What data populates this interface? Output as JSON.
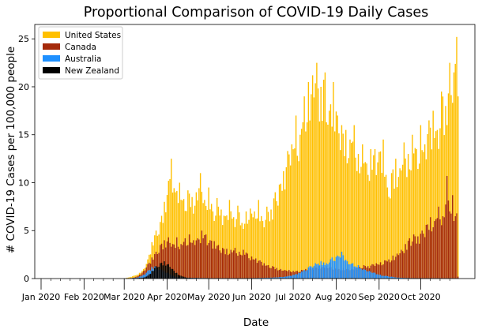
{
  "chart_data": {
    "type": "bar",
    "title": "Proportional Comparison of COVID-19 Daily Cases",
    "xlabel": "Date",
    "ylabel": "# COVID-19 Cases per 100,000 people",
    "ylim": [
      0,
      26.5
    ],
    "yticks": [
      0,
      5,
      10,
      15,
      20,
      25
    ],
    "x_range": [
      "2020-01-01",
      "2020-10-31"
    ],
    "x_ticks": [
      {
        "label": "Jan 2020",
        "date": "2020-01-01"
      },
      {
        "label": "Feb 2020",
        "date": "2020-02-01"
      },
      {
        "label": "Mar 2020",
        "date": "2020-03-01"
      },
      {
        "label": "Apr 2020",
        "date": "2020-04-01"
      },
      {
        "label": "May 2020",
        "date": "2020-05-01"
      },
      {
        "label": "Jun 2020",
        "date": "2020-06-01"
      },
      {
        "label": "Jul 2020",
        "date": "2020-07-01"
      },
      {
        "label": "Aug 2020",
        "date": "2020-08-01"
      },
      {
        "label": "Sep 2020",
        "date": "2020-09-01"
      },
      {
        "label": "Oct 2020",
        "date": "2020-10-01"
      }
    ],
    "legend_position": "top-left",
    "series": [
      {
        "name": "United States",
        "color": "#FFC000",
        "points": [
          [
            "2020-03-01",
            0.0
          ],
          [
            "2020-03-08",
            0.3
          ],
          [
            "2020-03-12",
            0.6
          ],
          [
            "2020-03-15",
            1.0
          ],
          [
            "2020-03-18",
            2.0
          ],
          [
            "2020-03-21",
            3.8
          ],
          [
            "2020-03-24",
            5.0
          ],
          [
            "2020-03-27",
            5.9
          ],
          [
            "2020-03-30",
            8.0
          ],
          [
            "2020-04-02",
            10.2
          ],
          [
            "2020-04-04",
            12.5
          ],
          [
            "2020-04-07",
            9.0
          ],
          [
            "2020-04-10",
            10.0
          ],
          [
            "2020-04-13",
            8.3
          ],
          [
            "2020-04-16",
            9.2
          ],
          [
            "2020-04-19",
            8.5
          ],
          [
            "2020-04-22",
            9.0
          ],
          [
            "2020-04-25",
            11.0
          ],
          [
            "2020-04-28",
            8.2
          ],
          [
            "2020-05-01",
            9.5
          ],
          [
            "2020-05-04",
            7.0
          ],
          [
            "2020-05-07",
            8.4
          ],
          [
            "2020-05-10",
            7.2
          ],
          [
            "2020-05-13",
            6.5
          ],
          [
            "2020-05-16",
            8.2
          ],
          [
            "2020-05-19",
            6.4
          ],
          [
            "2020-05-22",
            7.6
          ],
          [
            "2020-05-25",
            5.8
          ],
          [
            "2020-05-28",
            7.0
          ],
          [
            "2020-05-31",
            7.3
          ],
          [
            "2020-06-03",
            7.0
          ],
          [
            "2020-06-06",
            8.2
          ],
          [
            "2020-06-09",
            6.0
          ],
          [
            "2020-06-12",
            7.5
          ],
          [
            "2020-06-15",
            7.2
          ],
          [
            "2020-06-18",
            9.0
          ],
          [
            "2020-06-21",
            9.8
          ],
          [
            "2020-06-24",
            11.2
          ],
          [
            "2020-06-27",
            13.3
          ],
          [
            "2020-06-30",
            14.0
          ],
          [
            "2020-07-03",
            17.0
          ],
          [
            "2020-07-06",
            15.0
          ],
          [
            "2020-07-09",
            19.0
          ],
          [
            "2020-07-12",
            20.5
          ],
          [
            "2020-07-15",
            21.2
          ],
          [
            "2020-07-18",
            22.5
          ],
          [
            "2020-07-21",
            20.0
          ],
          [
            "2020-07-24",
            21.5
          ],
          [
            "2020-07-27",
            17.5
          ],
          [
            "2020-07-30",
            20.5
          ],
          [
            "2020-08-02",
            17.0
          ],
          [
            "2020-08-05",
            16.0
          ],
          [
            "2020-08-08",
            15.5
          ],
          [
            "2020-08-11",
            14.5
          ],
          [
            "2020-08-14",
            16.0
          ],
          [
            "2020-08-17",
            13.0
          ],
          [
            "2020-08-20",
            14.0
          ],
          [
            "2020-08-23",
            12.0
          ],
          [
            "2020-08-26",
            13.5
          ],
          [
            "2020-08-29",
            13.5
          ],
          [
            "2020-09-01",
            13.2
          ],
          [
            "2020-09-04",
            14.5
          ],
          [
            "2020-09-07",
            9.5
          ],
          [
            "2020-09-10",
            11.0
          ],
          [
            "2020-09-13",
            12.5
          ],
          [
            "2020-09-16",
            11.5
          ],
          [
            "2020-09-19",
            14.2
          ],
          [
            "2020-09-22",
            13.0
          ],
          [
            "2020-09-25",
            15.0
          ],
          [
            "2020-09-28",
            13.5
          ],
          [
            "2020-10-01",
            16.0
          ],
          [
            "2020-10-04",
            14.0
          ],
          [
            "2020-10-07",
            16.5
          ],
          [
            "2020-10-10",
            17.5
          ],
          [
            "2020-10-13",
            15.5
          ],
          [
            "2020-10-16",
            19.5
          ],
          [
            "2020-10-19",
            18.0
          ],
          [
            "2020-10-22",
            22.5
          ],
          [
            "2020-10-25",
            21.5
          ],
          [
            "2020-10-27",
            25.2
          ],
          [
            "2020-10-28",
            19.0
          ],
          [
            "2020-10-29",
            0.0
          ]
        ]
      },
      {
        "name": "Canada",
        "color": "#A52A0A",
        "points": [
          [
            "2020-03-01",
            0.0
          ],
          [
            "2020-03-08",
            0.1
          ],
          [
            "2020-03-12",
            0.4
          ],
          [
            "2020-03-15",
            0.8
          ],
          [
            "2020-03-18",
            1.5
          ],
          [
            "2020-03-21",
            2.2
          ],
          [
            "2020-03-24",
            2.8
          ],
          [
            "2020-03-27",
            3.5
          ],
          [
            "2020-03-30",
            4.0
          ],
          [
            "2020-04-02",
            4.3
          ],
          [
            "2020-04-05",
            3.6
          ],
          [
            "2020-04-08",
            4.3
          ],
          [
            "2020-04-11",
            3.6
          ],
          [
            "2020-04-14",
            4.2
          ],
          [
            "2020-04-17",
            4.6
          ],
          [
            "2020-04-20",
            4.0
          ],
          [
            "2020-04-23",
            4.2
          ],
          [
            "2020-04-26",
            5.0
          ],
          [
            "2020-04-29",
            4.6
          ],
          [
            "2020-05-02",
            4.0
          ],
          [
            "2020-05-05",
            3.9
          ],
          [
            "2020-05-08",
            3.5
          ],
          [
            "2020-05-11",
            3.2
          ],
          [
            "2020-05-14",
            3.1
          ],
          [
            "2020-05-17",
            3.0
          ],
          [
            "2020-05-20",
            3.2
          ],
          [
            "2020-05-23",
            2.8
          ],
          [
            "2020-05-26",
            3.0
          ],
          [
            "2020-05-29",
            2.6
          ],
          [
            "2020-06-01",
            2.3
          ],
          [
            "2020-06-04",
            2.1
          ],
          [
            "2020-06-07",
            1.9
          ],
          [
            "2020-06-10",
            1.6
          ],
          [
            "2020-06-13",
            1.4
          ],
          [
            "2020-06-16",
            1.3
          ],
          [
            "2020-06-19",
            1.1
          ],
          [
            "2020-06-22",
            1.0
          ],
          [
            "2020-06-25",
            0.9
          ],
          [
            "2020-06-28",
            0.9
          ],
          [
            "2020-07-01",
            0.8
          ],
          [
            "2020-07-04",
            0.8
          ],
          [
            "2020-07-07",
            0.9
          ],
          [
            "2020-07-10",
            1.0
          ],
          [
            "2020-07-13",
            1.1
          ],
          [
            "2020-07-16",
            1.2
          ],
          [
            "2020-07-19",
            1.3
          ],
          [
            "2020-07-22",
            1.2
          ],
          [
            "2020-07-25",
            1.3
          ],
          [
            "2020-07-28",
            1.2
          ],
          [
            "2020-07-31",
            1.1
          ],
          [
            "2020-08-03",
            1.0
          ],
          [
            "2020-08-06",
            1.1
          ],
          [
            "2020-08-09",
            1.0
          ],
          [
            "2020-08-12",
            1.0
          ],
          [
            "2020-08-15",
            1.1
          ],
          [
            "2020-08-18",
            1.2
          ],
          [
            "2020-08-21",
            1.4
          ],
          [
            "2020-08-24",
            1.3
          ],
          [
            "2020-08-27",
            1.5
          ],
          [
            "2020-08-30",
            1.6
          ],
          [
            "2020-09-02",
            1.7
          ],
          [
            "2020-09-05",
            1.9
          ],
          [
            "2020-09-08",
            2.0
          ],
          [
            "2020-09-11",
            2.4
          ],
          [
            "2020-09-14",
            2.6
          ],
          [
            "2020-09-17",
            3.0
          ],
          [
            "2020-09-20",
            3.6
          ],
          [
            "2020-09-23",
            4.2
          ],
          [
            "2020-09-26",
            4.6
          ],
          [
            "2020-09-29",
            4.4
          ],
          [
            "2020-10-02",
            5.0
          ],
          [
            "2020-10-05",
            5.6
          ],
          [
            "2020-10-08",
            6.4
          ],
          [
            "2020-10-11",
            6.0
          ],
          [
            "2020-10-14",
            7.5
          ],
          [
            "2020-10-17",
            6.5
          ],
          [
            "2020-10-20",
            10.7
          ],
          [
            "2020-10-22",
            7.0
          ],
          [
            "2020-10-24",
            8.7
          ],
          [
            "2020-10-26",
            6.5
          ],
          [
            "2020-10-27",
            6.8
          ],
          [
            "2020-10-28",
            0.2
          ]
        ]
      },
      {
        "name": "Australia",
        "color": "#1E90FF",
        "points": [
          [
            "2020-03-01",
            0.0
          ],
          [
            "2020-03-10",
            0.1
          ],
          [
            "2020-03-15",
            0.4
          ],
          [
            "2020-03-18",
            0.8
          ],
          [
            "2020-03-21",
            1.2
          ],
          [
            "2020-03-24",
            1.3
          ],
          [
            "2020-03-27",
            1.0
          ],
          [
            "2020-03-30",
            0.8
          ],
          [
            "2020-04-02",
            0.6
          ],
          [
            "2020-04-05",
            0.3
          ],
          [
            "2020-04-08",
            0.2
          ],
          [
            "2020-04-15",
            0.1
          ],
          [
            "2020-04-30",
            0.05
          ],
          [
            "2020-05-31",
            0.05
          ],
          [
            "2020-06-15",
            0.1
          ],
          [
            "2020-06-25",
            0.2
          ],
          [
            "2020-07-01",
            0.4
          ],
          [
            "2020-07-05",
            0.6
          ],
          [
            "2020-07-09",
            0.9
          ],
          [
            "2020-07-13",
            1.3
          ],
          [
            "2020-07-17",
            1.6
          ],
          [
            "2020-07-21",
            1.8
          ],
          [
            "2020-07-25",
            1.6
          ],
          [
            "2020-07-29",
            2.2
          ],
          [
            "2020-08-02",
            2.4
          ],
          [
            "2020-08-05",
            2.8
          ],
          [
            "2020-08-09",
            1.8
          ],
          [
            "2020-08-13",
            1.6
          ],
          [
            "2020-08-17",
            1.4
          ],
          [
            "2020-08-21",
            1.0
          ],
          [
            "2020-08-25",
            0.8
          ],
          [
            "2020-08-29",
            0.6
          ],
          [
            "2020-09-02",
            0.4
          ],
          [
            "2020-09-06",
            0.3
          ],
          [
            "2020-09-10",
            0.2
          ],
          [
            "2020-09-15",
            0.1
          ],
          [
            "2020-09-25",
            0.05
          ],
          [
            "2020-10-28",
            0.02
          ]
        ]
      },
      {
        "name": "New Zealand",
        "color": "#000000",
        "points": [
          [
            "2020-03-01",
            0.0
          ],
          [
            "2020-03-15",
            0.1
          ],
          [
            "2020-03-18",
            0.3
          ],
          [
            "2020-03-21",
            0.8
          ],
          [
            "2020-03-24",
            1.3
          ],
          [
            "2020-03-27",
            1.6
          ],
          [
            "2020-03-30",
            1.8
          ],
          [
            "2020-04-02",
            1.5
          ],
          [
            "2020-04-05",
            1.0
          ],
          [
            "2020-04-08",
            0.6
          ],
          [
            "2020-04-11",
            0.3
          ],
          [
            "2020-04-15",
            0.1
          ],
          [
            "2020-05-01",
            0.02
          ],
          [
            "2020-08-12",
            0.05
          ],
          [
            "2020-08-20",
            0.02
          ],
          [
            "2020-10-28",
            0.0
          ]
        ]
      }
    ]
  }
}
